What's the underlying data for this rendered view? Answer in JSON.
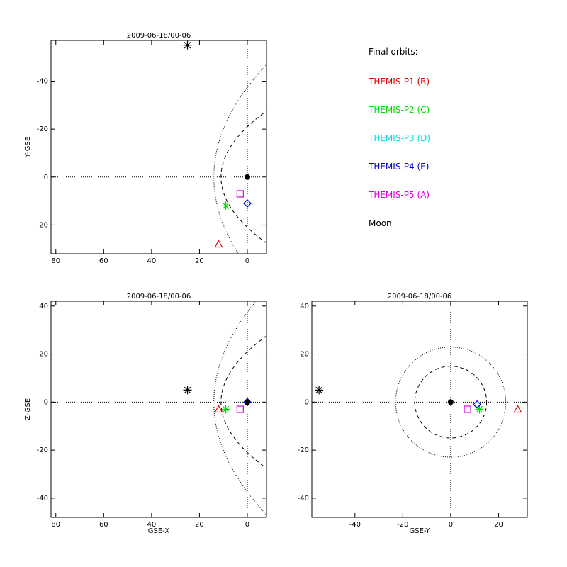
{
  "legend": {
    "title": "Final orbits:",
    "items": [
      {
        "label": "THEMIS-P1 (B)",
        "color": "#dd0000"
      },
      {
        "label": "THEMIS-P2 (C)",
        "color": "#00dd00"
      },
      {
        "label": "THEMIS-P3 (D)",
        "color": "#00dddd"
      },
      {
        "label": "THEMIS-P4 (E)",
        "color": "#0000cc"
      },
      {
        "label": "THEMIS-P5 (A)",
        "color": "#dd00dd"
      },
      {
        "label": "Moon",
        "color": "#000000"
      }
    ]
  },
  "chart_data": [
    {
      "type": "scatter",
      "title": "2009-06-18/00-06",
      "xlabel": "",
      "ylabel": "Y-GSE",
      "xlim": [
        82,
        -8
      ],
      "ylim": [
        32,
        -57
      ],
      "xticks": [
        80,
        60,
        40,
        20,
        0
      ],
      "yticks": [
        -40,
        -20,
        0,
        20
      ],
      "grid": false,
      "points": [
        {
          "name": "THEMIS-P1 (B)",
          "marker": "triangle",
          "color": "#dd0000",
          "x": 12,
          "y": 28
        },
        {
          "name": "THEMIS-P2 (C)",
          "marker": "asterisk",
          "color": "#00dd00",
          "x": 9,
          "y": 12
        },
        {
          "name": "THEMIS-P3 (D)",
          "marker": "diamond",
          "color": "#00dddd",
          "x": 0,
          "y": 11
        },
        {
          "name": "THEMIS-P4 (E)",
          "marker": "diamond",
          "color": "#0000cc",
          "x": 0,
          "y": 11
        },
        {
          "name": "THEMIS-P5 (A)",
          "marker": "square",
          "color": "#dd00dd",
          "x": 3,
          "y": 7
        },
        {
          "name": "Moon",
          "marker": "asterisk",
          "color": "#000000",
          "x": 25,
          "y": -55
        },
        {
          "name": "Earth",
          "marker": "dot",
          "color": "#000000",
          "x": 0,
          "y": 0
        }
      ]
    },
    {
      "type": "scatter",
      "title": "2009-06-18/00-06",
      "xlabel": "GSE-X",
      "ylabel": "Z-GSE",
      "xlim": [
        82,
        -8
      ],
      "ylim": [
        -48,
        42
      ],
      "xticks": [
        80,
        60,
        40,
        20,
        0
      ],
      "yticks": [
        -40,
        -20,
        0,
        20,
        40
      ],
      "grid": false,
      "points": [
        {
          "name": "THEMIS-P1 (B)",
          "marker": "triangle",
          "color": "#dd0000",
          "x": 12,
          "y": -3
        },
        {
          "name": "THEMIS-P2 (C)",
          "marker": "asterisk",
          "color": "#00dd00",
          "x": 9,
          "y": -3
        },
        {
          "name": "THEMIS-P3 (D)",
          "marker": "diamond",
          "color": "#00dddd",
          "x": 0,
          "y": 0
        },
        {
          "name": "THEMIS-P4 (E)",
          "marker": "diamond",
          "color": "#0000cc",
          "x": 0,
          "y": 0
        },
        {
          "name": "THEMIS-P5 (A)",
          "marker": "square",
          "color": "#dd00dd",
          "x": 3,
          "y": -3
        },
        {
          "name": "Moon",
          "marker": "asterisk",
          "color": "#000000",
          "x": 25,
          "y": 5
        },
        {
          "name": "Earth",
          "marker": "dot",
          "color": "#000000",
          "x": 0,
          "y": 0
        }
      ]
    },
    {
      "type": "scatter",
      "title": "2009-06-18/00-06",
      "xlabel": "GSE-Y",
      "ylabel": "",
      "xlim": [
        -58,
        32
      ],
      "ylim": [
        -48,
        42
      ],
      "xticks": [
        -40,
        -20,
        0,
        20
      ],
      "yticks": [
        -40,
        -20,
        0,
        20,
        40
      ],
      "grid": false,
      "points": [
        {
          "name": "THEMIS-P1 (B)",
          "marker": "triangle",
          "color": "#dd0000",
          "x": 28,
          "y": -3
        },
        {
          "name": "THEMIS-P2 (C)",
          "marker": "asterisk",
          "color": "#00dd00",
          "x": 12,
          "y": -3
        },
        {
          "name": "THEMIS-P3 (D)",
          "marker": "diamond",
          "color": "#00dddd",
          "x": 11,
          "y": -1
        },
        {
          "name": "THEMIS-P4 (E)",
          "marker": "diamond",
          "color": "#0000cc",
          "x": 11,
          "y": -1
        },
        {
          "name": "THEMIS-P5 (A)",
          "marker": "square",
          "color": "#dd00dd",
          "x": 7,
          "y": -3
        },
        {
          "name": "Moon",
          "marker": "asterisk",
          "color": "#000000",
          "x": -55,
          "y": 5
        },
        {
          "name": "Earth",
          "marker": "dot",
          "color": "#000000",
          "x": 0,
          "y": 0
        }
      ]
    }
  ]
}
